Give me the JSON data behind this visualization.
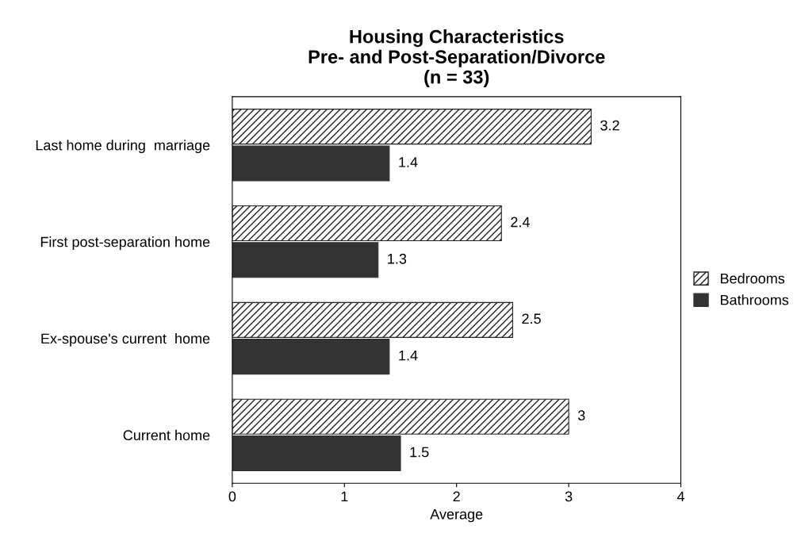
{
  "chart_data": {
    "type": "bar",
    "orientation": "horizontal",
    "title": "Housing Characteristics\nPre- and Post-Separation/Divorce\n(n = 33)",
    "xlabel": "Average",
    "categories": [
      "Last home during  marriage",
      "First post-separation home",
      "Ex-spouse's current  home",
      "Current home"
    ],
    "series": [
      {
        "name": "Bedrooms",
        "color": "#222222",
        "values": [
          3.2,
          2.4,
          2.5,
          3
        ]
      },
      {
        "name": "Bathrooms",
        "color": "#333333",
        "values": [
          1.4,
          1.3,
          1.4,
          1.5
        ]
      }
    ],
    "xlim": [
      0,
      4
    ],
    "xticks": [
      0,
      1,
      2,
      3,
      4
    ],
    "data_labels": true,
    "legend": "right",
    "grid": false
  }
}
